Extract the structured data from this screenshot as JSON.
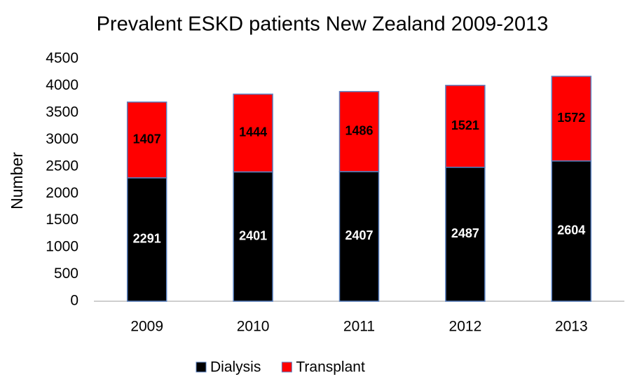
{
  "chart_data": {
    "type": "stacked_bar",
    "title": "Prevalent ESKD patients New Zealand 2009-2013",
    "y_label": "Number",
    "categories": [
      "2009",
      "2010",
      "2011",
      "2012",
      "2013"
    ],
    "series": [
      {
        "name": "Dialysis",
        "color": "#000000",
        "values": [
          2291,
          2401,
          2407,
          2487,
          2604
        ]
      },
      {
        "name": "Transplant",
        "color": "#ff0000",
        "values": [
          1407,
          1444,
          1486,
          1521,
          1572
        ]
      }
    ],
    "ylim": [
      0,
      4500
    ],
    "yticks": [
      0,
      500,
      1000,
      1500,
      2000,
      2500,
      3000,
      3500,
      4000,
      4500
    ],
    "grid": false,
    "legend": "bottom"
  }
}
